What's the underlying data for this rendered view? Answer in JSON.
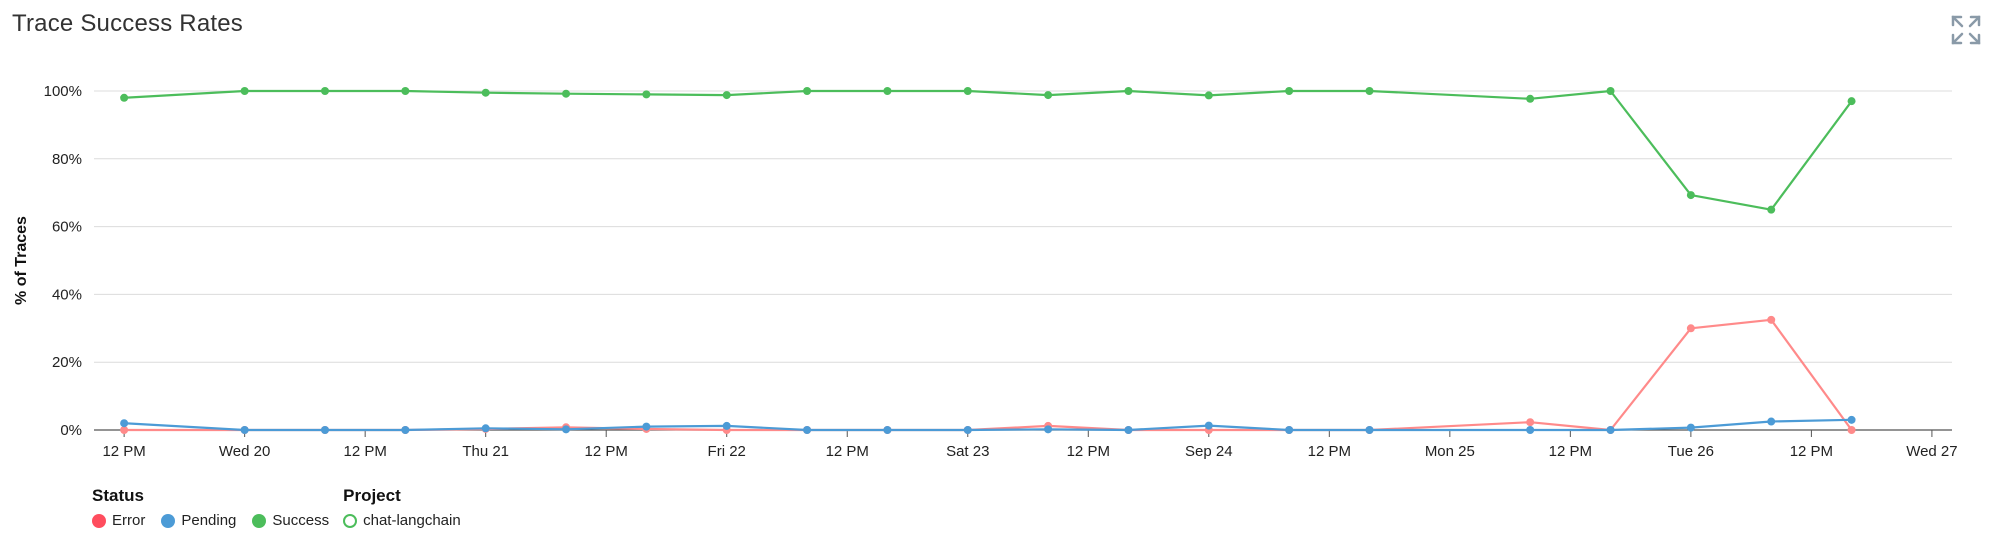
{
  "title": "Trace Success Rates",
  "expand_icon": "expand-icon",
  "chart_data": {
    "type": "line",
    "ylabel": "% of Traces",
    "xlabel": "",
    "ylim": [
      0,
      100
    ],
    "yticks": [
      0,
      20,
      40,
      60,
      80,
      100
    ],
    "ytick_labels": [
      "0%",
      "20%",
      "40%",
      "60%",
      "80%",
      "100%"
    ],
    "grid": true,
    "xticks": [
      {
        "label": "12 PM",
        "hours": 12
      },
      {
        "label": "Wed 20",
        "hours": 24
      },
      {
        "label": "12 PM",
        "hours": 36
      },
      {
        "label": "Thu 21",
        "hours": 48
      },
      {
        "label": "12 PM",
        "hours": 60
      },
      {
        "label": "Fri 22",
        "hours": 72
      },
      {
        "label": "12 PM",
        "hours": 84
      },
      {
        "label": "Sat 23",
        "hours": 96
      },
      {
        "label": "12 PM",
        "hours": 108
      },
      {
        "label": "Sep 24",
        "hours": 120
      },
      {
        "label": "12 PM",
        "hours": 132
      },
      {
        "label": "Mon 25",
        "hours": 144
      },
      {
        "label": "12 PM",
        "hours": 156
      },
      {
        "label": "Tue 26",
        "hours": 168
      },
      {
        "label": "12 PM",
        "hours": 180
      },
      {
        "label": "Wed 27",
        "hours": 192
      }
    ],
    "x_hours": [
      12,
      24,
      32,
      40,
      48,
      56,
      64,
      72,
      80,
      88,
      96,
      104,
      112,
      120,
      128,
      136,
      152,
      160,
      168,
      176,
      184
    ],
    "series": [
      {
        "name": "Error",
        "color": "#ff8a8a",
        "values": [
          0,
          0,
          0,
          0,
          0.3,
          0.8,
          0.3,
          0,
          0,
          0,
          0,
          1.2,
          0,
          0,
          0,
          0,
          2.3,
          0,
          30,
          32.5,
          0
        ]
      },
      {
        "name": "Pending",
        "color": "#4c9bd6",
        "values": [
          2,
          0,
          0,
          0,
          0.5,
          0.2,
          1,
          1.2,
          0,
          0,
          0,
          0.2,
          0,
          1.3,
          0,
          0,
          0,
          0,
          0.7,
          2.5,
          3
        ]
      },
      {
        "name": "Success",
        "color": "#4cbd5b",
        "values": [
          98,
          100,
          100,
          100,
          99.5,
          99.2,
          99,
          98.8,
          100,
          100,
          100,
          98.8,
          100,
          98.7,
          100,
          100,
          97.7,
          100,
          69.3,
          65,
          97
        ]
      }
    ]
  },
  "legend": {
    "status_title": "Status",
    "status_items": [
      {
        "label": "Error",
        "color": "#ff4d5e"
      },
      {
        "label": "Pending",
        "color": "#4c9bd6"
      },
      {
        "label": "Success",
        "color": "#4cbd5b"
      }
    ],
    "project_title": "Project",
    "project_items": [
      {
        "label": "chat-langchain",
        "color": "#4cbd5b"
      }
    ]
  }
}
